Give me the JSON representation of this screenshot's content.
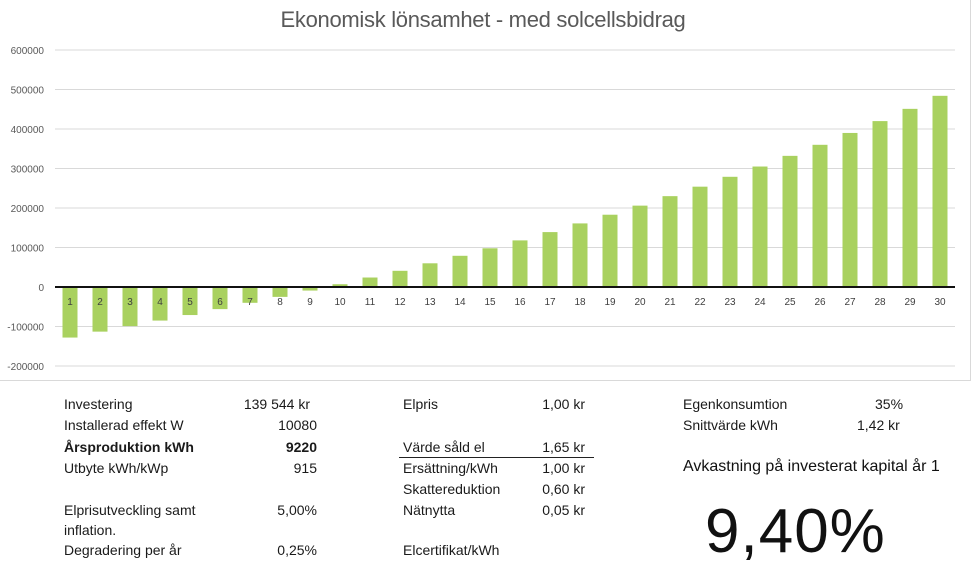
{
  "chart_data": {
    "type": "bar",
    "title": "Ekonomisk lönsamhet - med solcellsbidrag",
    "xlabel": "",
    "ylabel": "",
    "categories": [
      "1",
      "2",
      "3",
      "4",
      "5",
      "6",
      "7",
      "8",
      "9",
      "10",
      "11",
      "12",
      "13",
      "14",
      "15",
      "16",
      "17",
      "18",
      "19",
      "20",
      "21",
      "22",
      "23",
      "24",
      "25",
      "26",
      "27",
      "28",
      "29",
      "30"
    ],
    "values": [
      -128000,
      -113000,
      -99000,
      -85000,
      -71000,
      -56000,
      -40000,
      -25000,
      -9000,
      7000,
      24000,
      41000,
      60000,
      79000,
      98000,
      118000,
      139000,
      161000,
      183000,
      206000,
      230000,
      254000,
      279000,
      305000,
      332000,
      360000,
      390000,
      420000,
      451000,
      484000
    ],
    "ylim": [
      -200000,
      600000
    ],
    "yticks": [
      -200000,
      -100000,
      0,
      100000,
      200000,
      300000,
      400000,
      500000,
      600000
    ],
    "ytick_labels": [
      "-200000",
      "-100000",
      "0",
      "100000",
      "200000",
      "300000",
      "400000",
      "500000",
      "600000"
    ],
    "bar_color": "#a9d15f",
    "grid": true
  },
  "left_table": {
    "rows": [
      {
        "label": "Investering",
        "value": "139 544 kr"
      },
      {
        "label": "Installerad effekt W",
        "value": "10080"
      },
      {
        "label": "Årsproduktion kWh",
        "value": "9220"
      },
      {
        "label": "Utbyte kWh/kWp",
        "value": "915"
      },
      {
        "label": "Elprisutveckling samt",
        "label2": "inflation.",
        "value": "5,00%"
      },
      {
        "label": "Degradering per år",
        "value": "0,25%"
      }
    ]
  },
  "middle_table": {
    "rows": [
      {
        "label": "Elpris",
        "value": "1,00 kr"
      },
      {
        "label": "Värde såld el",
        "value": "1,65 kr"
      },
      {
        "label": "Ersättning/kWh",
        "value": "1,00 kr"
      },
      {
        "label": "Skattereduktion",
        "value": "0,60 kr"
      },
      {
        "label": "Nätnytta",
        "value": "0,05 kr"
      },
      {
        "label": "Elcertifikat/kWh",
        "value": ""
      }
    ]
  },
  "right_table": {
    "rows": [
      {
        "label": "Egenkonsumtion",
        "value": "35%"
      },
      {
        "label": "Snittvärde kWh",
        "value": "1,42 kr"
      }
    ],
    "roi_heading": "Avkastning på investerat kapital år 1",
    "roi_value": "9,40%"
  }
}
